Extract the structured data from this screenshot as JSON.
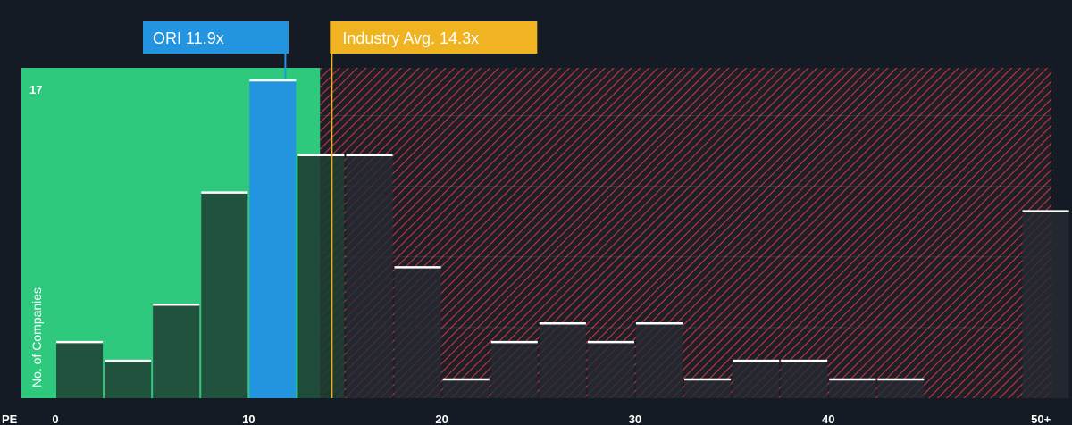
{
  "chart_data": {
    "type": "bar",
    "xlabel": "PE",
    "ylabel": "No. of Companies",
    "x_ticks": [
      "0",
      "10",
      "20",
      "30",
      "40",
      "50+"
    ],
    "x_tick_values": [
      0,
      10,
      20,
      30,
      40,
      51
    ],
    "xlim": [
      0,
      51.5
    ],
    "ylim": [
      0,
      17
    ],
    "y_max_label": "17",
    "bin_width": 2.5,
    "bins": [
      {
        "x0": 0,
        "value": 3
      },
      {
        "x0": 2.5,
        "value": 2
      },
      {
        "x0": 5,
        "value": 5
      },
      {
        "x0": 7.5,
        "value": 11
      },
      {
        "x0": 10,
        "value": 17,
        "highlight": true
      },
      {
        "x0": 12.5,
        "value": 13
      },
      {
        "x0": 15,
        "value": 13
      },
      {
        "x0": 17.5,
        "value": 7
      },
      {
        "x0": 20,
        "value": 1
      },
      {
        "x0": 22.5,
        "value": 3
      },
      {
        "x0": 25,
        "value": 4
      },
      {
        "x0": 27.5,
        "value": 3
      },
      {
        "x0": 30,
        "value": 4
      },
      {
        "x0": 32.5,
        "value": 1
      },
      {
        "x0": 35,
        "value": 2
      },
      {
        "x0": 37.5,
        "value": 2
      },
      {
        "x0": 40,
        "value": 1
      },
      {
        "x0": 42.5,
        "value": 1
      },
      {
        "x0": 45,
        "value": 0
      },
      {
        "x0": 47.5,
        "value": 0
      },
      {
        "x0": 50,
        "value": 10
      }
    ],
    "company": {
      "label": "ORI 11.9x",
      "value": 11.9,
      "color": "#2394df"
    },
    "industry": {
      "label": "Industry Avg. 14.3x",
      "value": 14.3,
      "color": "#f0b322"
    },
    "fair_zone_end": 13.7,
    "colors": {
      "background": "#151b24",
      "green_zone": "#2fc97e",
      "bar_dark": "#1e3d33",
      "bar_red_zone": "#262a33",
      "hatch": "#d23d45"
    }
  }
}
